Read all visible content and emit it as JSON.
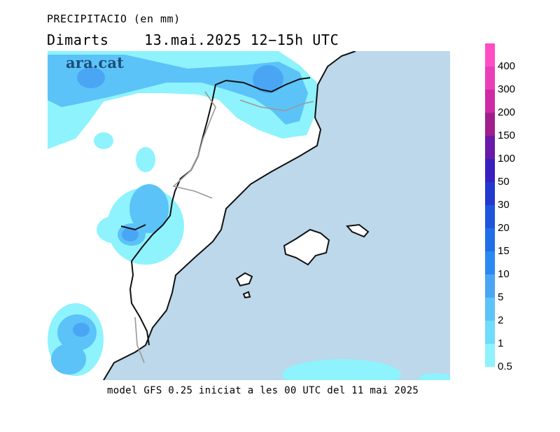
{
  "header": {
    "title": "PRECIPITACIO (en mm)",
    "day": "Dimarts",
    "date": "13.mai.2025",
    "hours": "12−15h UTC"
  },
  "logo": "ara.cat",
  "footer": "model GFS 0.25 iniciat a les 00 UTC del 11 mai 2025",
  "legend": {
    "labels": [
      "400",
      "300",
      "200",
      "150",
      "100",
      "50",
      "30",
      "20",
      "15",
      "10",
      "5",
      "2",
      "1",
      "0.5"
    ],
    "colors": [
      "#ff4ec4",
      "#ea3fb8",
      "#cf2aa6",
      "#a01f8c",
      "#6a1aa8",
      "#3a1fc0",
      "#2238cf",
      "#1f55dc",
      "#1f6fe8",
      "#2a8af2",
      "#4aa6f5",
      "#5cc3f8",
      "#6fdcfb",
      "#8ef3fd"
    ]
  },
  "map": {
    "sea_color": "#bcd8ea",
    "land_color": "#ffffff"
  }
}
